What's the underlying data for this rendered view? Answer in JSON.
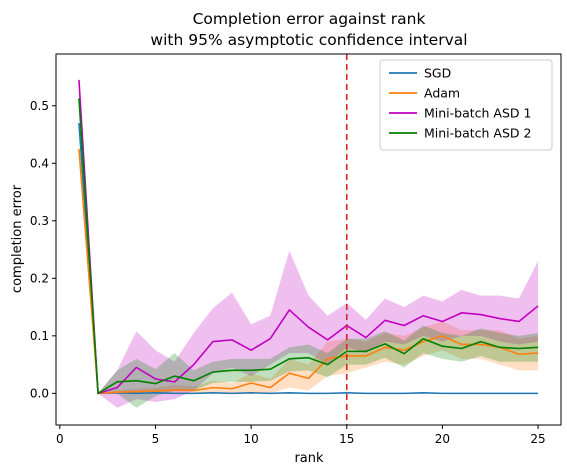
{
  "chart_data": {
    "type": "line",
    "title_line1": "Completion error against rank",
    "title_line2": "with 95% asymptotic confidence interval",
    "xlabel": "rank",
    "ylabel": "completion error",
    "xlim": [
      -0.2,
      26.2
    ],
    "ylim": [
      -0.055,
      0.59
    ],
    "xticks": [
      0,
      5,
      10,
      15,
      20,
      25
    ],
    "yticks": [
      0.0,
      0.1,
      0.2,
      0.3,
      0.4,
      0.5
    ],
    "ytick_labels": [
      "0.0",
      "0.1",
      "0.2",
      "0.3",
      "0.4",
      "0.5"
    ],
    "grid": false,
    "legend_position": "top-right",
    "vline": {
      "x": 15,
      "color": "#d62728",
      "style": "dashed"
    },
    "x": [
      1,
      2,
      3,
      4,
      5,
      6,
      7,
      8,
      9,
      10,
      11,
      12,
      13,
      14,
      15,
      16,
      17,
      18,
      19,
      20,
      21,
      22,
      23,
      24,
      25
    ],
    "series": [
      {
        "name": "SGD",
        "color": "#1f77b4",
        "values": [
          0.47,
          0.0,
          0.001,
          0.0,
          0.001,
          0.0,
          0.0,
          0.001,
          0.0,
          0.001,
          0.0,
          0.001,
          0.0,
          0.0,
          0.001,
          0.0,
          0.0,
          0.0,
          0.001,
          0.0,
          0.0,
          0.0,
          0.0,
          0.0,
          0.0
        ],
        "lower": null,
        "upper": null
      },
      {
        "name": "Adam",
        "color": "#ff7f0e",
        "values": [
          0.425,
          0.0,
          0.002,
          0.003,
          0.004,
          0.006,
          0.005,
          0.01,
          0.008,
          0.018,
          0.01,
          0.035,
          0.026,
          0.06,
          0.065,
          0.065,
          0.08,
          0.075,
          0.09,
          0.1,
          0.085,
          0.085,
          0.08,
          0.068,
          0.07
        ],
        "lower": [
          0.42,
          0.0,
          0.0,
          0.0,
          0.0,
          0.0,
          0.0,
          0.0,
          0.0,
          0.002,
          0.0,
          0.01,
          0.005,
          0.03,
          0.035,
          0.045,
          0.055,
          0.05,
          0.065,
          0.075,
          0.06,
          0.06,
          0.05,
          0.04,
          0.04
        ],
        "upper": [
          0.43,
          0.0,
          0.005,
          0.008,
          0.01,
          0.015,
          0.012,
          0.022,
          0.018,
          0.035,
          0.025,
          0.06,
          0.05,
          0.09,
          0.095,
          0.09,
          0.105,
          0.1,
          0.115,
          0.125,
          0.11,
          0.11,
          0.11,
          0.095,
          0.1
        ]
      },
      {
        "name": "Mini-batch ASD 1",
        "color": "#c000c0",
        "values": [
          0.545,
          0.0,
          0.01,
          0.045,
          0.025,
          0.02,
          0.05,
          0.09,
          0.093,
          0.075,
          0.095,
          0.145,
          0.115,
          0.093,
          0.118,
          0.097,
          0.127,
          0.118,
          0.135,
          0.125,
          0.14,
          0.137,
          0.13,
          0.125,
          0.152
        ],
        "lower": [
          0.54,
          0.0,
          -0.025,
          -0.01,
          -0.015,
          -0.01,
          0.005,
          0.035,
          0.045,
          0.03,
          0.05,
          0.07,
          0.07,
          0.05,
          0.08,
          0.07,
          0.09,
          0.085,
          0.1,
          0.09,
          0.1,
          0.1,
          0.09,
          0.085,
          0.09
        ],
        "upper": [
          0.55,
          0.0,
          0.04,
          0.108,
          0.075,
          0.055,
          0.105,
          0.148,
          0.175,
          0.12,
          0.135,
          0.248,
          0.17,
          0.135,
          0.157,
          0.128,
          0.165,
          0.15,
          0.17,
          0.16,
          0.18,
          0.17,
          0.17,
          0.165,
          0.23
        ]
      },
      {
        "name": "Mini-batch ASD 2",
        "color": "#008000",
        "values": [
          0.513,
          0.0,
          0.02,
          0.022,
          0.017,
          0.03,
          0.022,
          0.037,
          0.04,
          0.04,
          0.042,
          0.06,
          0.062,
          0.05,
          0.073,
          0.073,
          0.086,
          0.069,
          0.095,
          0.082,
          0.078,
          0.09,
          0.08,
          0.078,
          0.08
        ],
        "lower": [
          0.51,
          0.0,
          0.0,
          -0.025,
          -0.005,
          0.005,
          0.005,
          0.018,
          0.02,
          0.02,
          0.022,
          0.038,
          0.04,
          0.028,
          0.05,
          0.05,
          0.062,
          0.045,
          0.07,
          0.06,
          0.055,
          0.065,
          0.055,
          0.055,
          0.055
        ],
        "upper": [
          0.516,
          0.0,
          0.04,
          0.06,
          0.042,
          0.07,
          0.04,
          0.055,
          0.06,
          0.06,
          0.06,
          0.08,
          0.085,
          0.07,
          0.095,
          0.095,
          0.108,
          0.092,
          0.118,
          0.105,
          0.1,
          0.113,
          0.105,
          0.1,
          0.105
        ]
      }
    ]
  }
}
